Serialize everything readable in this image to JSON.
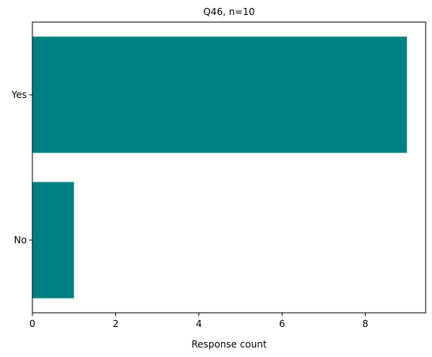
{
  "chart_data": {
    "type": "bar",
    "orientation": "horizontal",
    "title": "Q46, n=10",
    "xlabel": "Response count",
    "ylabel": "",
    "categories": [
      "Yes",
      "No"
    ],
    "values": [
      9,
      1
    ],
    "xlim": [
      0,
      9.45
    ],
    "xticks": [
      0,
      2,
      4,
      6,
      8
    ],
    "bar_color": "#008080",
    "grid": false,
    "legend": "none"
  }
}
